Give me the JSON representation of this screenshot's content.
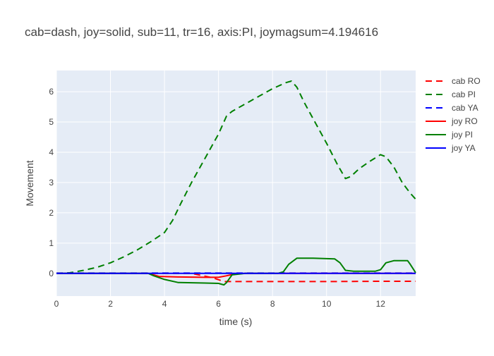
{
  "chart_data": {
    "type": "line",
    "title": "cab=dash, joy=solid, sub=11, tr=16, axis:PI, joymagsum=4.194616",
    "xlabel": "time (s)",
    "ylabel": "Movement",
    "xlim": [
      0,
      13.3
    ],
    "ylim": [
      -0.75,
      6.7
    ],
    "xticks": [
      0,
      2,
      4,
      6,
      8,
      10,
      12
    ],
    "yticks": [
      0,
      1,
      2,
      3,
      4,
      5,
      6
    ],
    "grid": true,
    "legend_position": "right",
    "background": "#E5ECF6",
    "series": [
      {
        "name": "cab RO",
        "color": "#FF0000",
        "dash": true,
        "x": [
          0,
          5.0,
          5.8,
          6.2,
          8.0,
          10.0,
          12.0,
          13.3
        ],
        "y": [
          0,
          0,
          -0.15,
          -0.27,
          -0.27,
          -0.27,
          -0.26,
          -0.26
        ]
      },
      {
        "name": "cab PI",
        "color": "#008000",
        "dash": true,
        "x": [
          0,
          0.5,
          1.0,
          1.5,
          2.0,
          2.5,
          3.0,
          3.5,
          4.0,
          4.3,
          4.6,
          5.0,
          5.5,
          6.0,
          6.3,
          6.5,
          7.0,
          7.5,
          8.0,
          8.5,
          8.7,
          8.9,
          9.2,
          9.6,
          10.0,
          10.4,
          10.7,
          10.9,
          11.2,
          11.6,
          12.0,
          12.2,
          12.5,
          12.8,
          13.1,
          13.3
        ],
        "y": [
          0,
          0.02,
          0.1,
          0.2,
          0.35,
          0.55,
          0.78,
          1.05,
          1.35,
          1.75,
          2.3,
          3.0,
          3.8,
          4.6,
          5.2,
          5.35,
          5.6,
          5.85,
          6.1,
          6.3,
          6.35,
          6.15,
          5.6,
          4.95,
          4.3,
          3.6,
          3.13,
          3.2,
          3.45,
          3.7,
          3.92,
          3.85,
          3.5,
          3.0,
          2.65,
          2.45
        ]
      },
      {
        "name": "cab YA",
        "color": "#0000FF",
        "dash": true,
        "x": [
          0,
          13.3
        ],
        "y": [
          0.01,
          0.01
        ]
      },
      {
        "name": "joy RO",
        "color": "#FF0000",
        "dash": false,
        "x": [
          0,
          3.4,
          3.8,
          4.5,
          5.5,
          6.0,
          6.3,
          6.6,
          7.0,
          13.3
        ],
        "y": [
          0,
          0,
          -0.1,
          -0.12,
          -0.13,
          -0.13,
          -0.08,
          -0.02,
          0,
          0
        ]
      },
      {
        "name": "joy PI",
        "color": "#008000",
        "dash": false,
        "x": [
          0,
          3.4,
          3.6,
          4.0,
          4.5,
          5.5,
          6.0,
          6.2,
          6.3,
          6.5,
          7.0,
          8.2,
          8.4,
          8.6,
          8.9,
          9.5,
          10.3,
          10.5,
          10.7,
          11.0,
          11.8,
          12.0,
          12.2,
          12.5,
          13.0,
          13.1,
          13.3
        ],
        "y": [
          0,
          0,
          -0.08,
          -0.2,
          -0.3,
          -0.32,
          -0.33,
          -0.38,
          -0.3,
          -0.05,
          0,
          0,
          0.05,
          0.3,
          0.5,
          0.5,
          0.48,
          0.35,
          0.1,
          0.07,
          0.07,
          0.12,
          0.35,
          0.42,
          0.42,
          0.3,
          0.02
        ]
      },
      {
        "name": "joy YA",
        "color": "#0000FF",
        "dash": false,
        "x": [
          0,
          13.3
        ],
        "y": [
          0,
          0
        ]
      }
    ]
  }
}
